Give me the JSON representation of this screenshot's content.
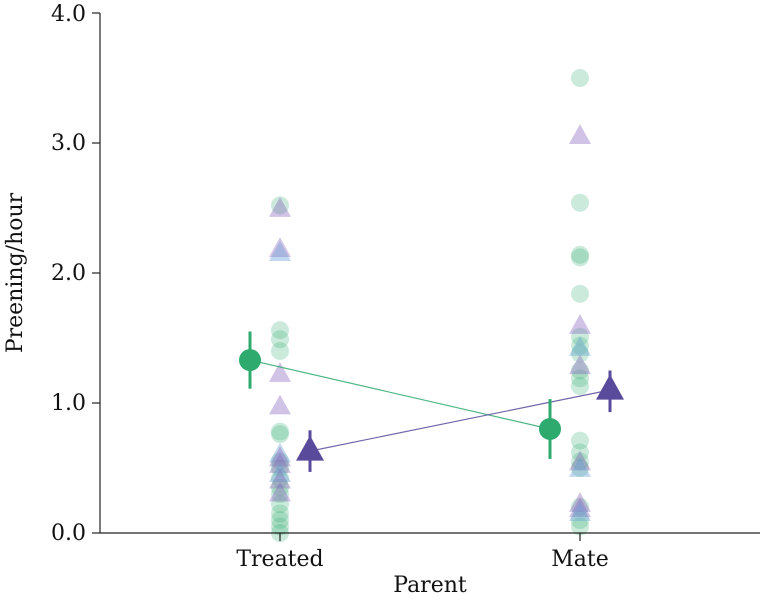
{
  "chart_data": {
    "type": "scatter",
    "xlabel": "Parent",
    "ylabel": "Preening/hour",
    "categories": [
      "Treated",
      "Mate"
    ],
    "ylim": [
      0,
      4
    ],
    "yticks": [
      "0.0",
      "1.0",
      "2.0",
      "3.0",
      "4.0"
    ],
    "colors": {
      "green": "#2eaa6e",
      "purple": "#5a4a9c",
      "green_light": "#2eaa6e",
      "purple_light": "#8a6abf",
      "blue_light": "#6aa0d8"
    },
    "series": [
      {
        "name": "green-circles",
        "marker": "circle",
        "color": "green",
        "raw": {
          "Treated": [
            2.52,
            1.56,
            1.49,
            1.4,
            0.78,
            0.76,
            0.55,
            0.5,
            0.42,
            0.35,
            0.3,
            0.22,
            0.15,
            0.1,
            0.05,
            0.0
          ],
          "Mate": [
            3.5,
            2.54,
            2.14,
            2.12,
            1.84,
            1.51,
            1.44,
            1.38,
            1.25,
            1.19,
            1.13,
            0.71,
            0.62,
            0.55,
            0.5,
            0.2,
            0.1,
            0.05
          ]
        },
        "mean": {
          "Treated": 1.33,
          "Mate": 0.8
        },
        "err": {
          "Treated": [
            1.11,
            1.55
          ],
          "Mate": [
            0.57,
            1.03
          ]
        }
      },
      {
        "name": "purple-triangles",
        "marker": "triangle",
        "color": "purple",
        "raw": {
          "Treated": [
            2.49,
            2.18,
            2.15,
            1.22,
            0.97,
            0.6,
            0.57,
            0.52,
            0.45,
            0.4,
            0.3
          ],
          "Mate": [
            3.05,
            1.59,
            1.42,
            1.28,
            0.54,
            0.49,
            0.22,
            0.18,
            0.15
          ]
        },
        "mean": {
          "Treated": 0.63,
          "Mate": 1.1
        },
        "err": {
          "Treated": [
            0.47,
            0.79
          ],
          "Mate": [
            0.93,
            1.25
          ]
        }
      }
    ]
  }
}
